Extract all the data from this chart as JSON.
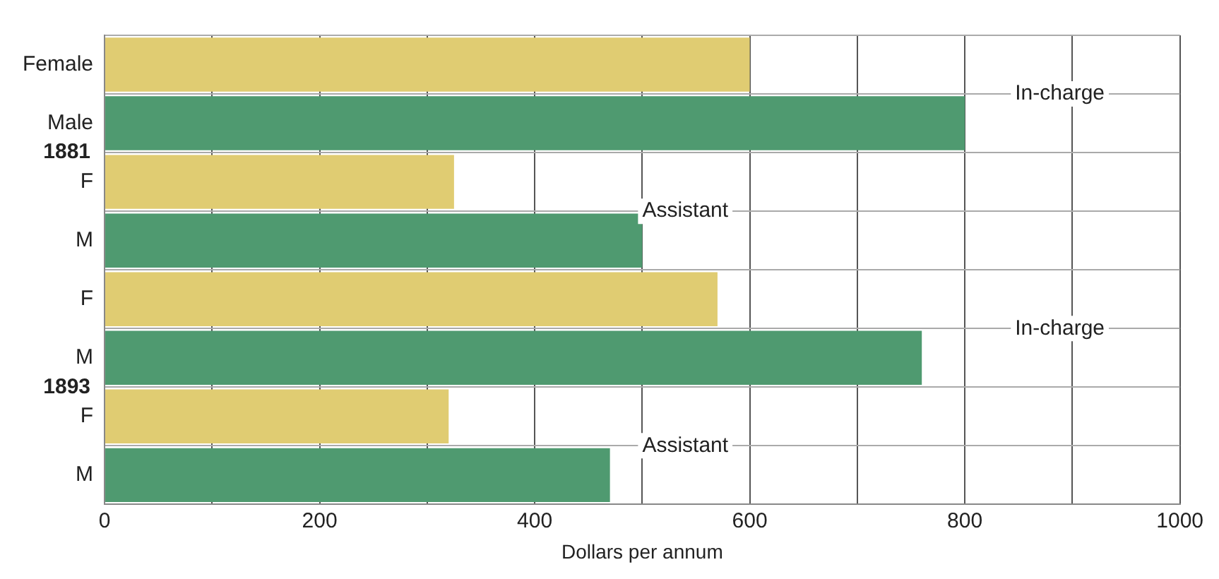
{
  "chart_data": {
    "type": "bar",
    "orientation": "horizontal",
    "xlabel": "Dollars per annum",
    "categories": [
      "Female",
      "Male",
      "F",
      "M",
      "F",
      "M",
      "F",
      "M"
    ],
    "values": [
      600,
      800,
      325,
      500,
      570,
      760,
      320,
      470
    ],
    "colors": [
      "#e0cc72",
      "#4f9a70",
      "#e0cc72",
      "#4f9a70",
      "#e0cc72",
      "#4f9a70",
      "#e0cc72",
      "#4f9a70"
    ],
    "xlim": [
      0,
      1000
    ],
    "xticks": [
      0,
      {
        "value": 100,
        "label": null
      },
      200,
      {
        "value": 300,
        "label": null
      },
      400,
      {
        "value": 500,
        "label": null
      },
      600,
      {
        "value": 700,
        "label": null
      },
      800,
      {
        "value": 900,
        "label": null
      },
      1000
    ],
    "grid": true,
    "legend": false,
    "annotations": [
      "In-charge",
      "1881",
      "Assistant",
      "In-charge",
      "1893",
      "Assistant"
    ]
  }
}
